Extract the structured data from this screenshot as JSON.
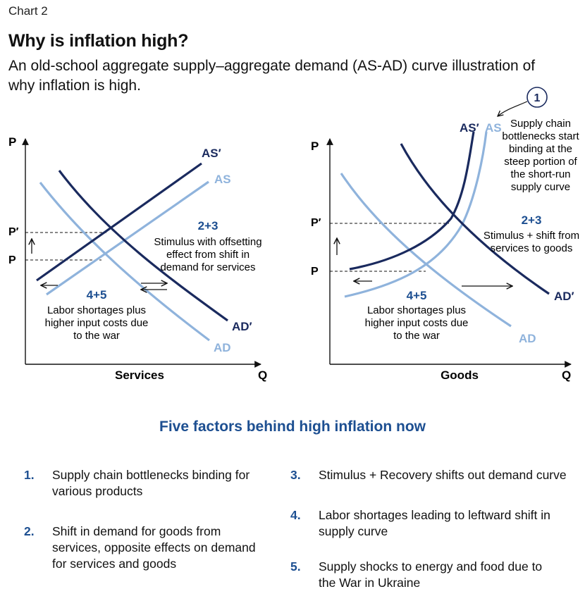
{
  "header": {
    "chart_number": "Chart 2",
    "title": "Why is inflation high?",
    "subtitle": "An old-school aggregate supply–aggregate demand (AS-AD) curve illustration of why inflation is high."
  },
  "colors": {
    "dark_navy": "#1a2a5e",
    "light_blue": "#8fb3dc",
    "accent_blue": "#1d4f91",
    "callout_circle": "#ffffff"
  },
  "left_panel": {
    "y_axis_label": "P",
    "x_axis_label": "Q",
    "category": "Services",
    "price_labels": {
      "p_prime": "P′",
      "p": "P"
    },
    "curves": {
      "as_prime": "AS′",
      "as": "AS",
      "ad_prime": "AD′",
      "ad": "AD"
    },
    "annotations": {
      "demand_num": "2+3",
      "demand_lines": [
        "Stimulus with offsetting",
        "effect from shift in",
        "demand for services"
      ],
      "supply_num": "4+5",
      "supply_lines": [
        "Labor shortages plus",
        "higher input costs due",
        "to the war"
      ]
    }
  },
  "right_panel": {
    "y_axis_label": "P",
    "x_axis_label": "Q",
    "category": "Goods",
    "price_labels": {
      "p_prime": "P′",
      "p": "P"
    },
    "curves": {
      "as_prime": "AS′",
      "as": "AS",
      "ad_prime": "AD′",
      "ad": "AD"
    },
    "callout": {
      "number": "1",
      "lines": [
        "Supply chain",
        "bottlenecks start",
        "binding at the",
        "steep portion of",
        "the short-run",
        "supply curve"
      ]
    },
    "annotations": {
      "demand_num": "2+3",
      "demand_lines": [
        "Stimulus + shift from",
        "services to goods"
      ],
      "supply_num": "4+5",
      "supply_lines": [
        "Labor shortages plus",
        "higher input costs due",
        "to the war"
      ]
    }
  },
  "factors": {
    "title": "Five factors behind high inflation now",
    "items": [
      {
        "num": "1.",
        "text": "Supply chain bottlenecks binding for various products"
      },
      {
        "num": "2.",
        "text": "Shift in demand for goods from services, opposite effects on demand for services and goods"
      },
      {
        "num": "3.",
        "text": "Stimulus + Recovery shifts out demand curve"
      },
      {
        "num": "4.",
        "text": "Labor shortages leading to leftward shift in supply curve"
      },
      {
        "num": "5.",
        "text": "Supply shocks to energy and food due to the War in Ukraine"
      }
    ]
  }
}
